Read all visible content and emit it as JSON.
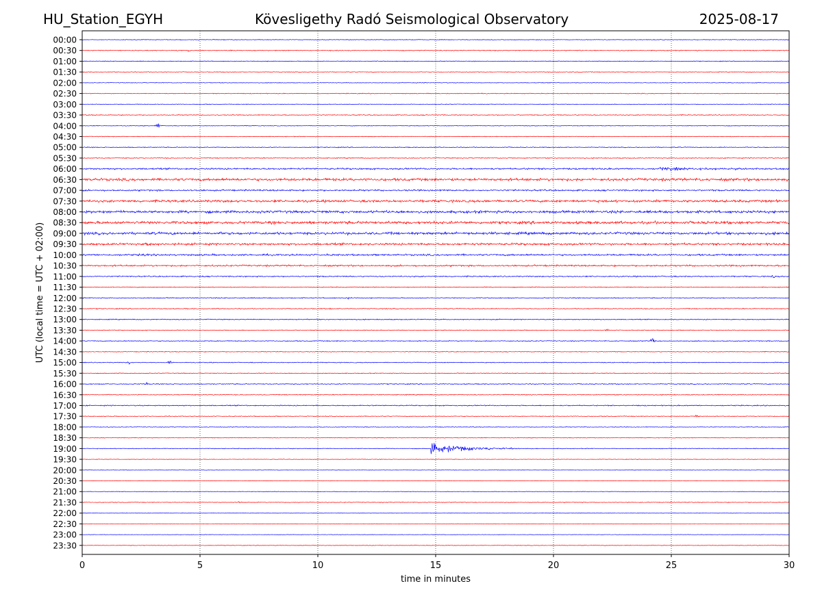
{
  "header": {
    "station": "HU_Station_EGYH",
    "observatory": "Kövesligethy Radó Seismological Observatory",
    "date": "2025-08-17"
  },
  "chart_data": {
    "type": "line",
    "title": "Kövesligethy Radó Seismological Observatory",
    "xlabel": "time in minutes",
    "ylabel": "UTC (local time = UTC + 02:00)",
    "xlim": [
      0,
      30
    ],
    "xticks": [
      "0",
      "5",
      "10",
      "15",
      "20",
      "25",
      "30"
    ],
    "vertical_gridlines_at": [
      5,
      10,
      15,
      20,
      25
    ],
    "grid": "dotted vertical",
    "row_labels": [
      "00:00",
      "00:30",
      "01:00",
      "01:30",
      "02:00",
      "02:30",
      "03:00",
      "03:30",
      "04:00",
      "04:30",
      "05:00",
      "05:30",
      "06:00",
      "06:30",
      "07:00",
      "07:30",
      "08:00",
      "08:30",
      "09:00",
      "09:30",
      "10:00",
      "10:30",
      "11:00",
      "11:30",
      "12:00",
      "12:30",
      "13:00",
      "13:30",
      "14:00",
      "14:30",
      "15:00",
      "15:30",
      "16:00",
      "16:30",
      "17:00",
      "17:30",
      "18:00",
      "18:30",
      "19:00",
      "19:30",
      "20:00",
      "20:30",
      "21:00",
      "21:30",
      "22:00",
      "22:30",
      "23:00",
      "23:30"
    ],
    "row_noise_level": [
      0.6,
      0.8,
      0.7,
      0.6,
      0.6,
      0.7,
      0.6,
      0.8,
      0.6,
      0.6,
      0.8,
      0.8,
      1.6,
      2.6,
      1.6,
      2.4,
      2.6,
      2.8,
      2.6,
      2.2,
      1.8,
      1.6,
      1.2,
      0.8,
      0.9,
      0.8,
      0.9,
      0.7,
      0.9,
      0.7,
      0.8,
      0.7,
      0.9,
      0.8,
      1.0,
      0.7,
      0.6,
      0.6,
      0.7,
      0.5,
      0.4,
      0.4,
      0.4,
      0.6,
      0.4,
      0.4,
      0.4,
      0.5
    ],
    "events": [
      {
        "row": "00:30",
        "minute": 4.5,
        "amplitude": 1.5
      },
      {
        "row": "04:00",
        "minute": 3.2,
        "amplitude": 5
      },
      {
        "row": "06:00",
        "minute": 24.5,
        "amplitude": 2.5,
        "duration_min": 5.5
      },
      {
        "row": "06:30",
        "minute": 0.5,
        "amplitude": 2.5
      },
      {
        "row": "06:30",
        "minute": 16.7,
        "amplitude": 2
      },
      {
        "row": "08:00",
        "minute": 14.0,
        "amplitude": 2.5
      },
      {
        "row": "09:30",
        "minute": 2.8,
        "amplitude": 2.5
      },
      {
        "row": "10:00",
        "minute": 2.6,
        "amplitude": 2
      },
      {
        "row": "11:00",
        "minute": 29.3,
        "amplitude": 2.5
      },
      {
        "row": "12:00",
        "minute": 11.3,
        "amplitude": 2
      },
      {
        "row": "12:30",
        "minute": 10.5,
        "amplitude": 1.5
      },
      {
        "row": "13:30",
        "minute": 22.3,
        "amplitude": 2
      },
      {
        "row": "14:00",
        "minute": 24.2,
        "amplitude": 7
      },
      {
        "row": "15:00",
        "minute": 2.0,
        "amplitude": 2.5
      },
      {
        "row": "15:00",
        "minute": 3.7,
        "amplitude": 3
      },
      {
        "row": "16:00",
        "minute": 2.7,
        "amplitude": 3
      },
      {
        "row": "17:30",
        "minute": 26.1,
        "amplitude": 3
      },
      {
        "row": "19:00",
        "minute": 14.8,
        "amplitude": 8,
        "duration_min": 4.5
      },
      {
        "row": "21:30",
        "minute": 6.7,
        "amplitude": 1.5
      }
    ],
    "series_colors": [
      "#0000ff",
      "#ff0000"
    ]
  }
}
